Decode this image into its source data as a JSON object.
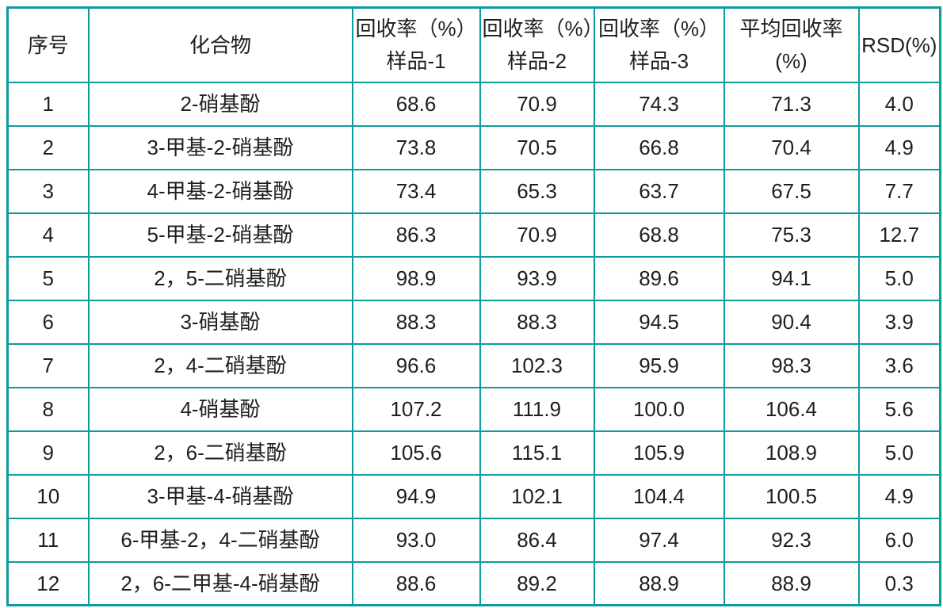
{
  "colors": {
    "border": "#0e9b9e",
    "text": "#1f1f1f",
    "background": "#ffffff"
  },
  "chart_data": {
    "type": "table",
    "title": "",
    "columns": [
      {
        "line1": "序号",
        "line2": ""
      },
      {
        "line1": "化合物",
        "line2": ""
      },
      {
        "line1": "回收率（%）",
        "line2": "样品-1"
      },
      {
        "line1": "回收率（%）",
        "line2": "样品-2"
      },
      {
        "line1": "回收率（%）",
        "line2": "样品-3"
      },
      {
        "line1": "平均回收率",
        "line2": "(%)"
      },
      {
        "line1": "RSD(%)",
        "line2": ""
      }
    ],
    "rows": [
      [
        "1",
        "2-硝基酚",
        "68.6",
        "70.9",
        "74.3",
        "71.3",
        "4.0"
      ],
      [
        "2",
        "3-甲基-2-硝基酚",
        "73.8",
        "70.5",
        "66.8",
        "70.4",
        "4.9"
      ],
      [
        "3",
        "4-甲基-2-硝基酚",
        "73.4",
        "65.3",
        "63.7",
        "67.5",
        "7.7"
      ],
      [
        "4",
        "5-甲基-2-硝基酚",
        "86.3",
        "70.9",
        "68.8",
        "75.3",
        "12.7"
      ],
      [
        "5",
        "2，5-二硝基酚",
        "98.9",
        "93.9",
        "89.6",
        "94.1",
        "5.0"
      ],
      [
        "6",
        "3-硝基酚",
        "88.3",
        "88.3",
        "94.5",
        "90.4",
        "3.9"
      ],
      [
        "7",
        "2，4-二硝基酚",
        "96.6",
        "102.3",
        "95.9",
        "98.3",
        "3.6"
      ],
      [
        "8",
        "4-硝基酚",
        "107.2",
        "111.9",
        "100.0",
        "106.4",
        "5.6"
      ],
      [
        "9",
        "2，6-二硝基酚",
        "105.6",
        "115.1",
        "105.9",
        "108.9",
        "5.0"
      ],
      [
        "10",
        "3-甲基-4-硝基酚",
        "94.9",
        "102.1",
        "104.4",
        "100.5",
        "4.9"
      ],
      [
        "11",
        "6-甲基-2，4-二硝基酚",
        "93.0",
        "86.4",
        "97.4",
        "92.3",
        "6.0"
      ],
      [
        "12",
        "2，6-二甲基-4-硝基酚",
        "88.6",
        "89.2",
        "88.9",
        "88.9",
        "0.3"
      ]
    ]
  }
}
